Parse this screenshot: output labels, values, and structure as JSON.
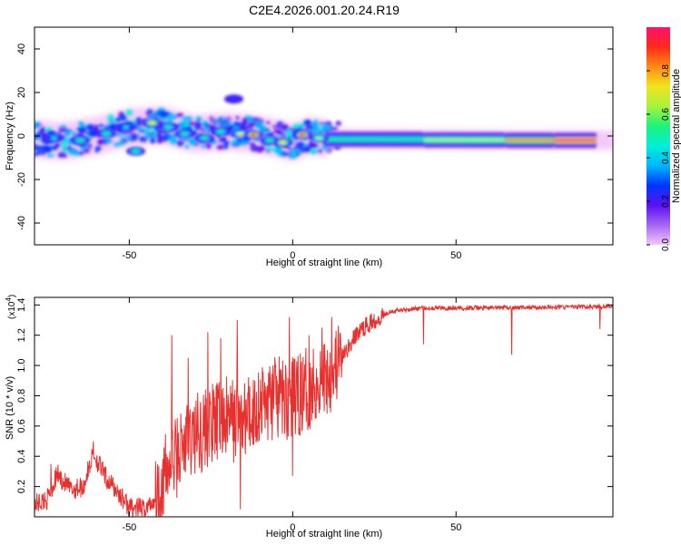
{
  "title": "C2E4.2026.001.20.24.R19",
  "colors": {
    "snr_line": "#e8302e",
    "colormap": [
      "#f4c7f9",
      "#a566f2",
      "#5a10f0",
      "#0036ff",
      "#00b6ff",
      "#00f0d8",
      "#1ef27a",
      "#a8f23c",
      "#f0e51e",
      "#ff8a12",
      "#ff2a1a",
      "#ff1070"
    ]
  },
  "chart_data": [
    {
      "type": "heatmap",
      "xlabel": "Height of straight line (km)",
      "ylabel": "Frequency (Hz)",
      "xlim": [
        -79,
        98
      ],
      "ylim": [
        -50,
        50
      ],
      "xticks": [
        -50,
        0,
        50
      ],
      "yticks": [
        40,
        20,
        0,
        -20,
        -40
      ],
      "xtick_labels": [
        "-50",
        "0",
        "50"
      ],
      "ytick_labels": [
        "40",
        "20",
        "0",
        "-20",
        "-40"
      ],
      "colorbar": {
        "label": "Normalized spectral amplitude",
        "range": [
          0,
          1
        ],
        "ticks": [
          "0.0",
          "0.2",
          "0.4",
          "0.6",
          "0.8"
        ],
        "tick_values": [
          0,
          0.2,
          0.4,
          0.6,
          0.8
        ]
      },
      "ridge": [
        [
          -79,
          -1.5
        ],
        [
          -70,
          -2.5
        ],
        [
          -60,
          0
        ],
        [
          -50,
          4
        ],
        [
          -40,
          5
        ],
        [
          -30,
          1
        ],
        [
          -20,
          2
        ],
        [
          -12,
          1
        ],
        [
          -5,
          -1
        ],
        [
          0,
          -3
        ],
        [
          5,
          0
        ],
        [
          10,
          -1
        ],
        [
          30,
          -1.5
        ],
        [
          60,
          -1.8
        ],
        [
          98,
          -2
        ]
      ],
      "blobs": [
        {
          "x": -73,
          "y": -1,
          "a": 0.45
        },
        {
          "x": -65,
          "y": -2,
          "a": 0.5
        },
        {
          "x": -57,
          "y": 1,
          "a": 0.5
        },
        {
          "x": -51,
          "y": 4,
          "a": 0.45
        },
        {
          "x": -48,
          "y": -7,
          "a": 0.5
        },
        {
          "x": -43,
          "y": 6,
          "a": 0.75
        },
        {
          "x": -38,
          "y": 4,
          "a": 0.5
        },
        {
          "x": -33,
          "y": 1,
          "a": 0.55
        },
        {
          "x": -27,
          "y": -1,
          "a": 0.55
        },
        {
          "x": -22,
          "y": 2,
          "a": 0.5
        },
        {
          "x": -16,
          "y": 1,
          "a": 0.7
        },
        {
          "x": -12,
          "y": 0.5,
          "a": 0.95
        },
        {
          "x": -7,
          "y": -2,
          "a": 0.55
        },
        {
          "x": -3,
          "y": -3,
          "a": 0.75
        },
        {
          "x": 3,
          "y": 0.5,
          "a": 0.9
        },
        {
          "x": 8,
          "y": -1,
          "a": 0.6
        },
        {
          "x": -18,
          "y": 17,
          "a": 0.25
        }
      ],
      "flat_band": [
        {
          "x1": 10,
          "x2": 40,
          "y": -1.5,
          "a": 0.55
        },
        {
          "x1": 40,
          "x2": 65,
          "y": -1.8,
          "a": 0.65
        },
        {
          "x1": 65,
          "x2": 80,
          "y": -2,
          "a": 0.8
        },
        {
          "x1": 80,
          "x2": 93,
          "y": -2,
          "a": 1.0
        }
      ]
    },
    {
      "type": "line",
      "xlabel": "Height of straight line (km)",
      "ylabel": "SNR (10 * v/v)",
      "multiplier": "(x10",
      "multiplier_exp": "4",
      "multiplier_close": ")",
      "xlim": [
        -79,
        98
      ],
      "ylim": [
        0,
        1.45
      ],
      "xticks": [
        -50,
        0,
        50
      ],
      "yticks": [
        0.2,
        0.4,
        0.6,
        0.8,
        1.0,
        1.2,
        1.4
      ],
      "xtick_labels": [
        "-50",
        "0",
        "50"
      ],
      "ytick_labels": [
        "0.2",
        "0.4",
        "0.6",
        "0.8",
        "1.0",
        "1.2",
        "1.4"
      ],
      "envelope": [
        [
          -79,
          0.08
        ],
        [
          -75,
          0.12
        ],
        [
          -72,
          0.28
        ],
        [
          -68,
          0.18
        ],
        [
          -64,
          0.2
        ],
        [
          -61,
          0.42
        ],
        [
          -57,
          0.25
        ],
        [
          -53,
          0.15
        ],
        [
          -50,
          0.06
        ],
        [
          -45,
          0.05
        ],
        [
          -42,
          0.12
        ],
        [
          -38,
          0.32
        ],
        [
          -34,
          0.45
        ],
        [
          -30,
          0.55
        ],
        [
          -25,
          0.6
        ],
        [
          -20,
          0.65
        ],
        [
          -15,
          0.62
        ],
        [
          -10,
          0.75
        ],
        [
          -5,
          0.78
        ],
        [
          0,
          0.78
        ],
        [
          5,
          0.85
        ],
        [
          10,
          0.93
        ],
        [
          15,
          1.05
        ],
        [
          20,
          1.22
        ],
        [
          25,
          1.3
        ],
        [
          30,
          1.36
        ],
        [
          40,
          1.38
        ],
        [
          60,
          1.38
        ],
        [
          98,
          1.39
        ]
      ],
      "spikes_up": [
        [
          -74,
          0.35
        ],
        [
          -61,
          0.5
        ],
        [
          -37,
          1.2
        ],
        [
          -32,
          1.05
        ],
        [
          -26,
          1.22
        ],
        [
          -22,
          1.18
        ],
        [
          -17,
          1.3
        ],
        [
          -6,
          1.0
        ],
        [
          -1,
          1.32
        ],
        [
          5,
          1.2
        ],
        [
          9,
          1.25
        ],
        [
          12,
          1.32
        ]
      ],
      "spikes_down": [
        [
          40,
          1.14
        ],
        [
          67,
          1.07
        ],
        [
          94,
          1.24
        ],
        [
          0,
          0.27
        ],
        [
          -16,
          0.05
        ]
      ]
    }
  ]
}
